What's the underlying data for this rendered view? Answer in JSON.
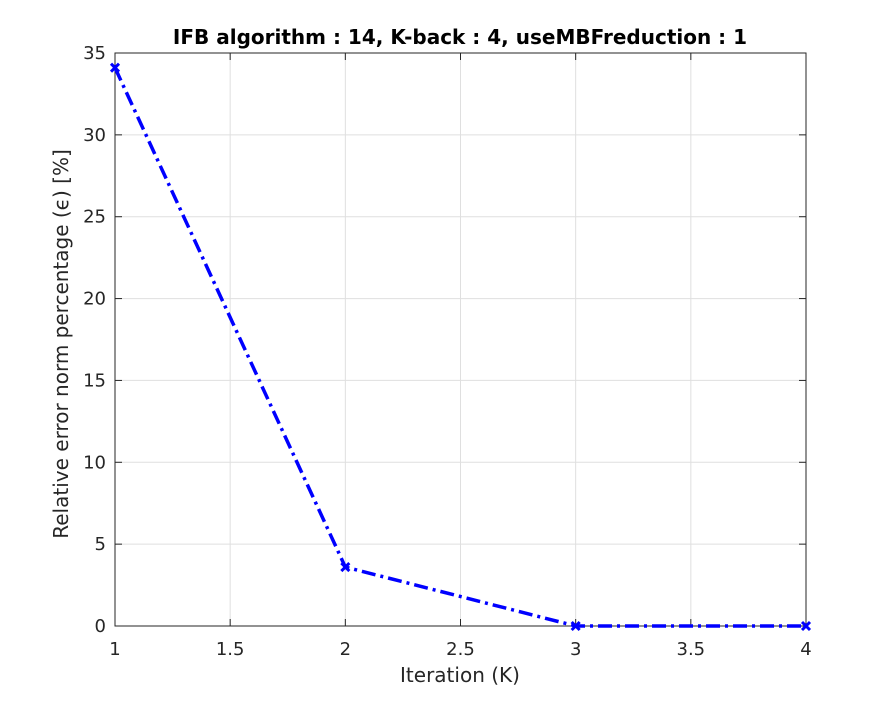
{
  "chart_data": {
    "type": "line",
    "title": "IFB algorithm : 14, K-back : 4, useMBFreduction : 1",
    "xlabel": "Iteration (K)",
    "ylabel": "Relative error norm percentage (ϵ) [%]",
    "xlim": [
      1,
      4
    ],
    "ylim": [
      0,
      35
    ],
    "xticks": [
      1,
      1.5,
      2,
      2.5,
      3,
      3.5,
      4
    ],
    "xtick_labels": [
      "1",
      "1.5",
      "2",
      "2.5",
      "3",
      "3.5",
      "4"
    ],
    "yticks": [
      0,
      5,
      10,
      15,
      20,
      25,
      30,
      35
    ],
    "ytick_labels": [
      "0",
      "5",
      "10",
      "15",
      "20",
      "25",
      "30",
      "35"
    ],
    "grid": true,
    "series": [
      {
        "x": [
          1,
          2,
          3,
          4
        ],
        "values": [
          34.1,
          3.6,
          0.0,
          0.0
        ],
        "color": "#0000ff",
        "line_style": "dash-dot",
        "marker": "x"
      }
    ]
  }
}
